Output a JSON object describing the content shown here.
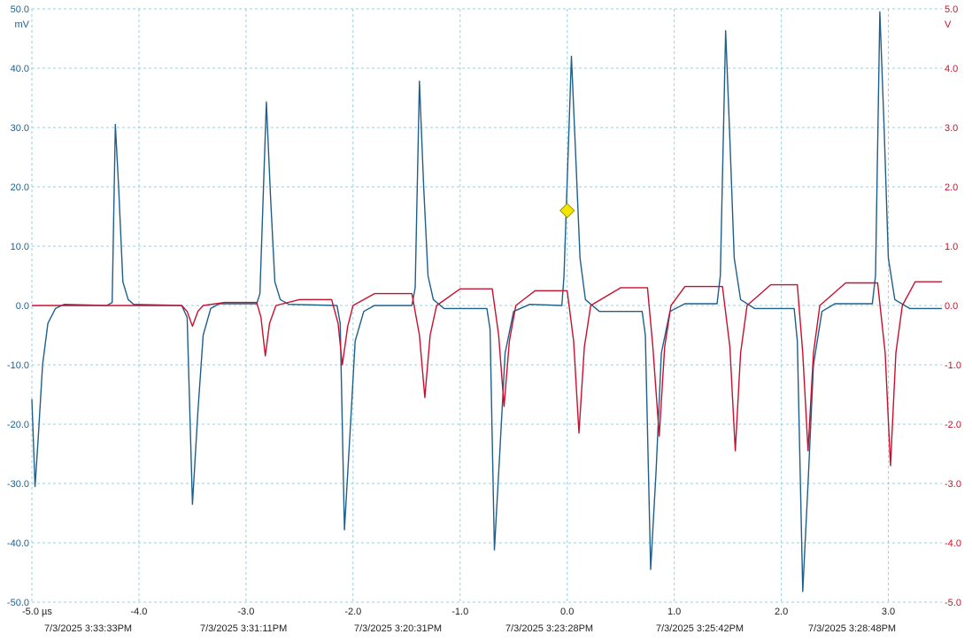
{
  "chart_data": {
    "type": "line",
    "title": "",
    "left_axis": {
      "unit": "mV",
      "range": [
        -50,
        50
      ],
      "ticks": [
        "50.0",
        "40.0",
        "30.0",
        "20.0",
        "10.0",
        "0.0",
        "-10.0",
        "-20.0",
        "-30.0",
        "-40.0",
        "-50.0"
      ],
      "color": "#1f5f8b"
    },
    "right_axis": {
      "unit": "V",
      "range": [
        -5,
        5
      ],
      "ticks": [
        "5.0",
        "4.0",
        "3.0",
        "2.0",
        "1.0",
        "0.0",
        "-1.0",
        "-2.0",
        "-3.0",
        "-4.0",
        "-5.0"
      ],
      "color": "#c8102e"
    },
    "x_axis": {
      "unit": "µs",
      "range": [
        -5.0,
        3.5
      ],
      "ticks": [
        {
          "value": -5.0,
          "label": "-5.0 µs"
        },
        {
          "value": -4.0,
          "label": "-4.0"
        },
        {
          "value": -3.0,
          "label": "-3.0"
        },
        {
          "value": -2.0,
          "label": "-2.0"
        },
        {
          "value": -1.0,
          "label": "-1.0"
        },
        {
          "value": 0.0,
          "label": "0.0"
        },
        {
          "value": 1.0,
          "label": "1.0"
        },
        {
          "value": 2.0,
          "label": "2.0"
        },
        {
          "value": 3.0,
          "label": "3.0"
        }
      ]
    },
    "timestamps": [
      "7/3/2025 3:33:33\u0001PM",
      "7/3/2025 3:31:11\u0001PM",
      "7/3/2025 3:20:31\u0001PM",
      "7/3/2025 3:23:28\u0001PM",
      "7/3/2025 3:25:42\u0001PM",
      "7/3/2025 3:28:48\u0001PM"
    ],
    "grid": true,
    "trigger_marker": {
      "x": 0.0,
      "y_mV": 16.0,
      "color": "#f2e600"
    },
    "series": [
      {
        "axis": "left",
        "color": "#1f5f8b",
        "points": [
          [
            -5.0,
            -15.8
          ],
          [
            -4.97,
            -30.5
          ],
          [
            -4.94,
            -22
          ],
          [
            -4.9,
            -10
          ],
          [
            -4.85,
            -3
          ],
          [
            -4.78,
            -0.5
          ],
          [
            -4.7,
            0.2
          ],
          [
            -4.3,
            0.0
          ],
          [
            -4.25,
            0.5
          ],
          [
            -4.22,
            30.5
          ],
          [
            -4.19,
            20
          ],
          [
            -4.15,
            4
          ],
          [
            -4.1,
            1
          ],
          [
            -4.05,
            0.2
          ],
          [
            -3.6,
            0.0
          ],
          [
            -3.55,
            -2
          ],
          [
            -3.5,
            -33.5
          ],
          [
            -3.45,
            -18
          ],
          [
            -3.4,
            -5
          ],
          [
            -3.33,
            -0.5
          ],
          [
            -3.25,
            0.3
          ],
          [
            -2.9,
            0.3
          ],
          [
            -2.87,
            2
          ],
          [
            -2.81,
            34.3
          ],
          [
            -2.77,
            18
          ],
          [
            -2.73,
            4
          ],
          [
            -2.68,
            1
          ],
          [
            -2.6,
            0.2
          ],
          [
            -2.15,
            0.0
          ],
          [
            -2.12,
            -3
          ],
          [
            -2.08,
            -37.8
          ],
          [
            -2.03,
            -22
          ],
          [
            -1.98,
            -6
          ],
          [
            -1.9,
            -1
          ],
          [
            -1.8,
            0.0
          ],
          [
            -1.45,
            0.0
          ],
          [
            -1.42,
            3
          ],
          [
            -1.38,
            37.8
          ],
          [
            -1.34,
            20
          ],
          [
            -1.3,
            5
          ],
          [
            -1.25,
            1
          ],
          [
            -1.15,
            -0.5
          ],
          [
            -0.75,
            -0.5
          ],
          [
            -0.72,
            -4
          ],
          [
            -0.68,
            -41.2
          ],
          [
            -0.63,
            -25
          ],
          [
            -0.58,
            -8
          ],
          [
            -0.5,
            -1
          ],
          [
            -0.35,
            0.2
          ],
          [
            -0.05,
            0.0
          ],
          [
            -0.03,
            5
          ],
          [
            0.04,
            42.0
          ],
          [
            0.08,
            25
          ],
          [
            0.12,
            8
          ],
          [
            0.17,
            1
          ],
          [
            0.3,
            -1
          ],
          [
            0.7,
            -1
          ],
          [
            0.73,
            -5
          ],
          [
            0.78,
            -44.5
          ],
          [
            0.83,
            -28
          ],
          [
            0.88,
            -8
          ],
          [
            0.96,
            -1
          ],
          [
            1.1,
            0.3
          ],
          [
            1.4,
            0.3
          ],
          [
            1.43,
            5
          ],
          [
            1.48,
            46.3
          ],
          [
            1.52,
            28
          ],
          [
            1.56,
            8
          ],
          [
            1.62,
            1
          ],
          [
            1.75,
            -0.5
          ],
          [
            2.12,
            -0.5
          ],
          [
            2.15,
            -6
          ],
          [
            2.2,
            -48.2
          ],
          [
            2.25,
            -30
          ],
          [
            2.3,
            -10
          ],
          [
            2.38,
            -1
          ],
          [
            2.5,
            0.3
          ],
          [
            2.85,
            0.3
          ],
          [
            2.88,
            5
          ],
          [
            2.92,
            49.5
          ],
          [
            2.96,
            30
          ],
          [
            3.0,
            8
          ],
          [
            3.06,
            1
          ],
          [
            3.2,
            -0.5
          ],
          [
            3.5,
            -0.5
          ]
        ]
      },
      {
        "axis": "right",
        "color": "#c8102e",
        "points": [
          [
            -5.0,
            0.0
          ],
          [
            -3.6,
            0.0
          ],
          [
            -3.55,
            -0.1
          ],
          [
            -3.5,
            -0.35
          ],
          [
            -3.45,
            -0.1
          ],
          [
            -3.4,
            0.0
          ],
          [
            -3.2,
            0.05
          ],
          [
            -2.9,
            0.05
          ],
          [
            -2.86,
            -0.2
          ],
          [
            -2.82,
            -0.85
          ],
          [
            -2.78,
            -0.3
          ],
          [
            -2.72,
            0.0
          ],
          [
            -2.5,
            0.1
          ],
          [
            -2.2,
            0.1
          ],
          [
            -2.14,
            -0.3
          ],
          [
            -2.1,
            -1.0
          ],
          [
            -2.05,
            -0.35
          ],
          [
            -2.0,
            0.0
          ],
          [
            -1.8,
            0.2
          ],
          [
            -1.45,
            0.2
          ],
          [
            -1.38,
            -0.5
          ],
          [
            -1.33,
            -1.55
          ],
          [
            -1.28,
            -0.5
          ],
          [
            -1.22,
            0.0
          ],
          [
            -1.0,
            0.28
          ],
          [
            -0.7,
            0.28
          ],
          [
            -0.64,
            -0.5
          ],
          [
            -0.59,
            -1.7
          ],
          [
            -0.54,
            -0.6
          ],
          [
            -0.48,
            0.0
          ],
          [
            -0.3,
            0.25
          ],
          [
            0.0,
            0.25
          ],
          [
            0.06,
            -0.6
          ],
          [
            0.11,
            -2.15
          ],
          [
            0.16,
            -0.7
          ],
          [
            0.22,
            0.0
          ],
          [
            0.5,
            0.3
          ],
          [
            0.75,
            0.3
          ],
          [
            0.8,
            -0.7
          ],
          [
            0.86,
            -2.2
          ],
          [
            0.91,
            -0.7
          ],
          [
            0.97,
            0.0
          ],
          [
            1.1,
            0.32
          ],
          [
            1.45,
            0.32
          ],
          [
            1.52,
            -0.7
          ],
          [
            1.57,
            -2.45
          ],
          [
            1.62,
            -0.8
          ],
          [
            1.68,
            0.0
          ],
          [
            1.9,
            0.35
          ],
          [
            2.15,
            0.35
          ],
          [
            2.2,
            -0.8
          ],
          [
            2.25,
            -2.45
          ],
          [
            2.3,
            -0.8
          ],
          [
            2.36,
            0.0
          ],
          [
            2.6,
            0.38
          ],
          [
            2.9,
            0.38
          ],
          [
            2.97,
            -0.8
          ],
          [
            3.02,
            -2.7
          ],
          [
            3.07,
            -0.8
          ],
          [
            3.13,
            0.0
          ],
          [
            3.25,
            0.4
          ],
          [
            3.5,
            0.4
          ]
        ]
      }
    ]
  }
}
